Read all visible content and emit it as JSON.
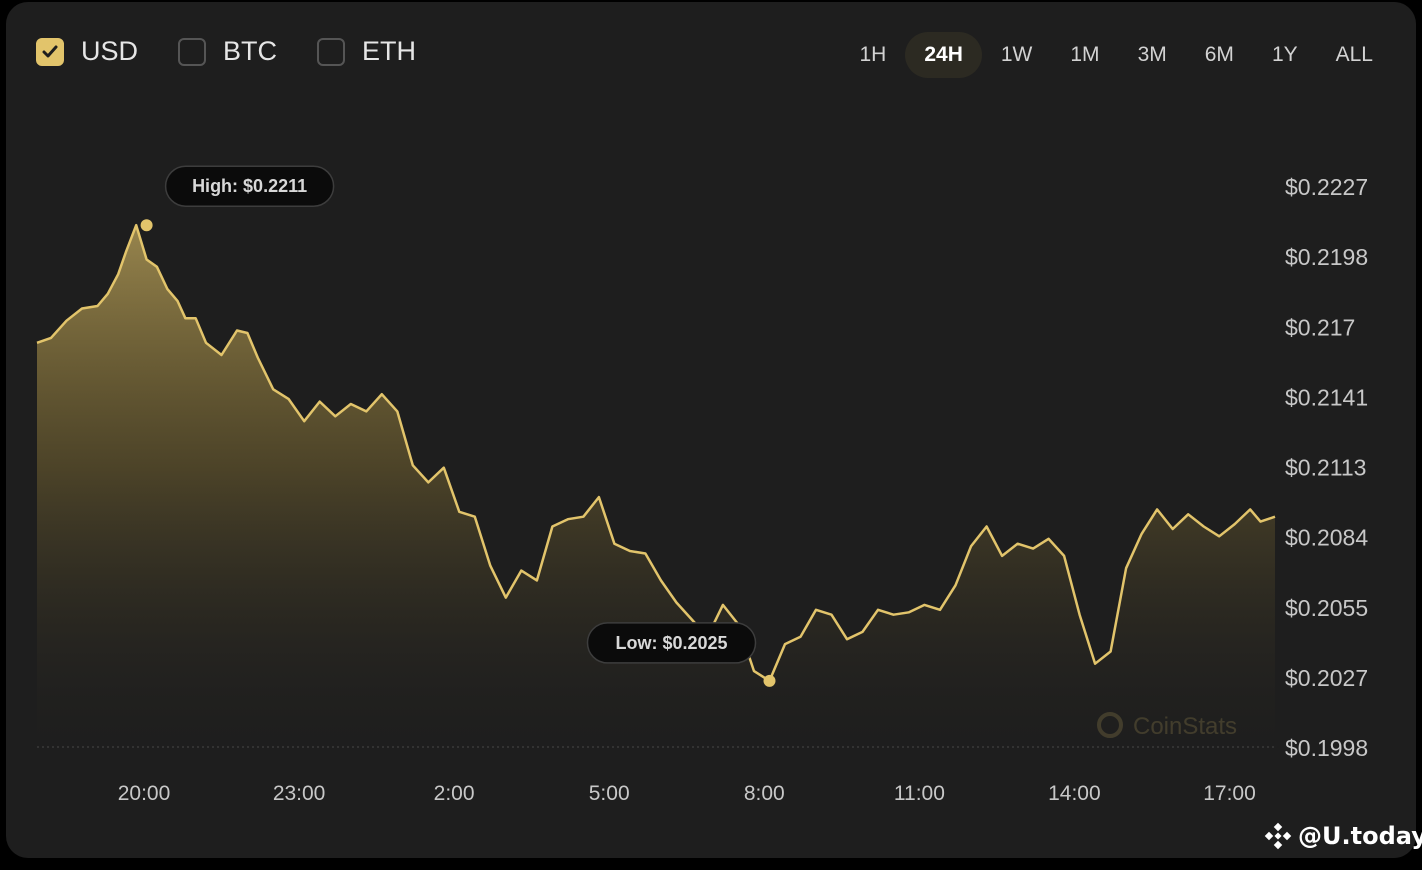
{
  "currencies": [
    {
      "label": "USD",
      "checked": true
    },
    {
      "label": "BTC",
      "checked": false
    },
    {
      "label": "ETH",
      "checked": false
    }
  ],
  "ranges": [
    "1H",
    "24H",
    "1W",
    "1M",
    "3M",
    "6M",
    "1Y",
    "ALL"
  ],
  "active_range": "24H",
  "watermark": {
    "provider": "CoinStats",
    "site": "@U.today"
  },
  "colors": {
    "accent": "#e2c46b",
    "panel": "#1e1e1e",
    "background": "#000000"
  },
  "chart_data": {
    "type": "area",
    "title": "",
    "xlabel": "",
    "ylabel": "",
    "x_ticks": [
      "20:00",
      "23:00",
      "2:00",
      "5:00",
      "8:00",
      "11:00",
      "14:00",
      "17:00"
    ],
    "y_ticks": [
      "$0.2227",
      "$0.2198",
      "$0.217",
      "$0.2141",
      "$0.2113",
      "$0.2084",
      "$0.2055",
      "$0.2027",
      "$0.1998"
    ],
    "ylim": [
      0.1998,
      0.2227
    ],
    "x_unit": "hours since 20:00",
    "x_range": [
      -2.07,
      21.88
    ],
    "series": [
      {
        "x": [
          -2.07,
          -1.8,
          -1.5,
          -1.2,
          -0.9,
          -0.7,
          -0.5,
          -0.35,
          -0.15,
          0.05,
          0.25,
          0.45,
          0.65,
          0.8,
          1.0,
          1.2,
          1.5,
          1.8,
          2.0,
          2.2,
          2.5,
          2.8,
          3.1,
          3.4,
          3.7,
          4.0,
          4.3,
          4.6,
          4.9,
          5.2,
          5.5,
          5.8,
          6.1,
          6.4,
          6.7,
          7.0,
          7.3,
          7.6,
          7.9,
          8.2,
          8.5,
          8.8,
          9.1,
          9.4,
          9.7,
          10.0,
          10.3,
          10.6,
          10.9,
          11.2,
          11.5,
          11.8,
          12.1,
          12.4,
          12.7,
          13.0,
          13.3,
          13.6,
          13.9,
          14.2,
          14.5,
          14.8,
          15.1,
          15.4,
          15.7,
          16.0,
          16.3,
          16.6,
          16.9,
          17.2,
          17.5,
          17.8,
          18.1,
          18.4,
          18.7,
          19.0,
          19.3,
          19.6,
          19.9,
          20.2,
          20.5,
          20.8,
          21.1,
          21.4,
          21.6,
          21.88
        ],
        "y": [
          0.2163,
          0.2165,
          0.2172,
          0.2177,
          0.2178,
          0.2183,
          0.2191,
          0.22,
          0.2211,
          0.2197,
          0.2194,
          0.2185,
          0.218,
          0.2173,
          0.2173,
          0.2163,
          0.2158,
          0.2168,
          0.2167,
          0.2157,
          0.2144,
          0.214,
          0.2131,
          0.2139,
          0.2133,
          0.2138,
          0.2135,
          0.2142,
          0.2135,
          0.2113,
          0.2106,
          0.2112,
          0.2094,
          0.2092,
          0.2072,
          0.2059,
          0.207,
          0.2066,
          0.2088,
          0.2091,
          0.2092,
          0.21,
          0.2081,
          0.2078,
          0.2077,
          0.2066,
          0.2057,
          0.205,
          0.2043,
          0.2056,
          0.2048,
          0.2029,
          0.2025,
          0.204,
          0.2043,
          0.2054,
          0.2052,
          0.2042,
          0.2045,
          0.2054,
          0.2052,
          0.2053,
          0.2056,
          0.2054,
          0.2064,
          0.208,
          0.2088,
          0.2076,
          0.2081,
          0.2079,
          0.2083,
          0.2076,
          0.2052,
          0.2032,
          0.2037,
          0.2071,
          0.2085,
          0.2095,
          0.2087,
          0.2093,
          0.2088,
          0.2084,
          0.2089,
          0.2095,
          0.209,
          0.2092
        ]
      }
    ],
    "annotations": [
      {
        "label": "High: $0.2211",
        "x": 0.05,
        "y": 0.2211
      },
      {
        "label": "Low: $0.2025",
        "x": 12.1,
        "y": 0.2025
      }
    ],
    "grid": false,
    "legend": "none"
  }
}
